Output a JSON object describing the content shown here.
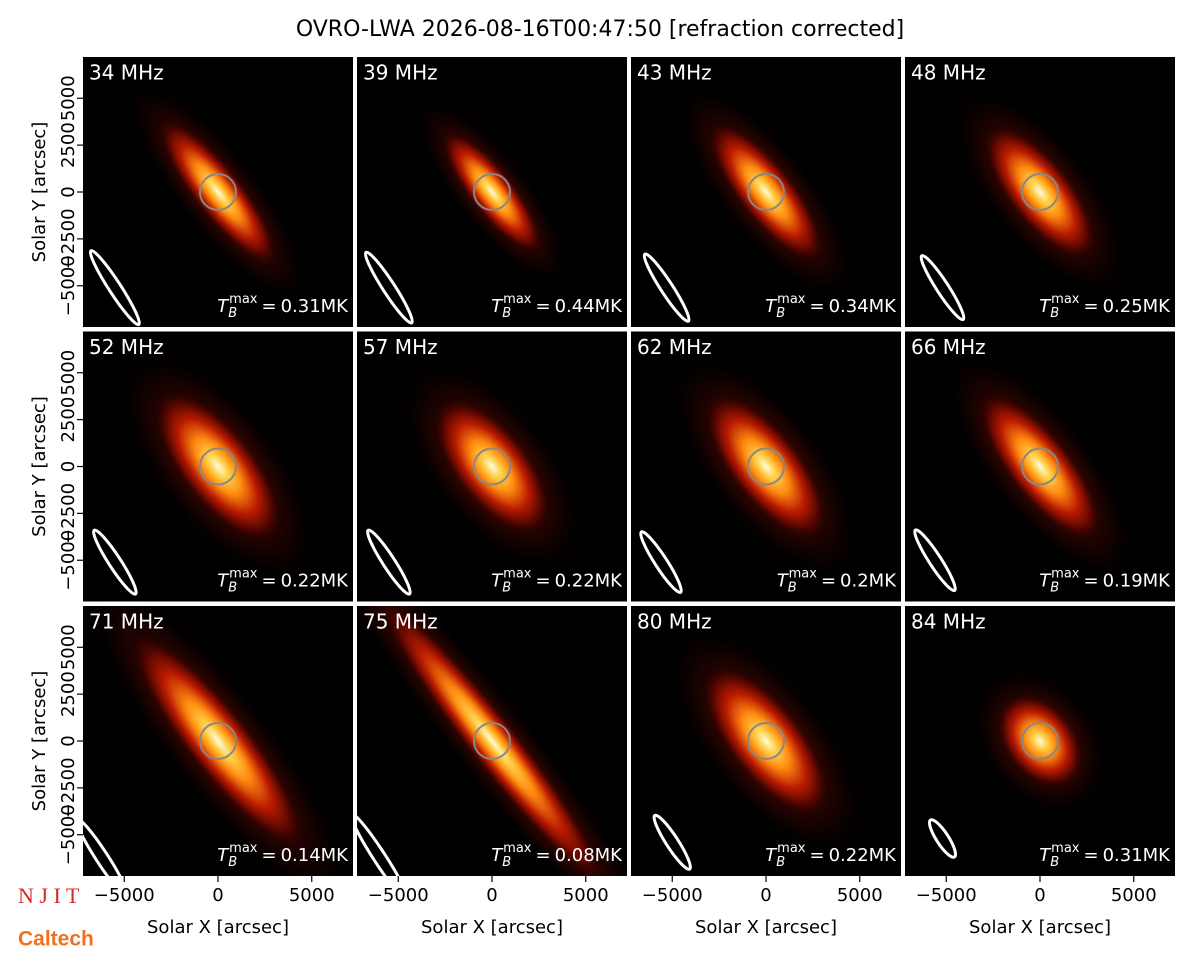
{
  "chart_data": {
    "type": "image",
    "title": "OVRO-LWA 2026-08-16T00:47:50 [refraction corrected]",
    "xlabel": "Solar X [arcsec]",
    "ylabel": "Solar Y [arcsec]",
    "xlim": [
      -7200,
      7200
    ],
    "ylim": [
      -7200,
      7200
    ],
    "xticks": [
      {
        "value": -5000,
        "label": "−5000"
      },
      0,
      5000
    ],
    "yticks": [
      {
        "value": -5000,
        "label": "−5000"
      },
      {
        "value": -2500,
        "label": "−2500"
      },
      0,
      2500,
      5000
    ],
    "tb_symbol": "T",
    "tb_sub": "B",
    "tb_sup": "max",
    "tb_eq": "=",
    "panels": [
      {
        "freq": "34 MHz",
        "tmax": "0.31MK"
      },
      {
        "freq": "39 MHz",
        "tmax": "0.44MK"
      },
      {
        "freq": "43 MHz",
        "tmax": "0.34MK"
      },
      {
        "freq": "48 MHz",
        "tmax": "0.25MK"
      },
      {
        "freq": "52 MHz",
        "tmax": "0.22MK"
      },
      {
        "freq": "57 MHz",
        "tmax": "0.22MK"
      },
      {
        "freq": "62 MHz",
        "tmax": "0.2MK"
      },
      {
        "freq": "66 MHz",
        "tmax": "0.19MK"
      },
      {
        "freq": "71 MHz",
        "tmax": "0.14MK"
      },
      {
        "freq": "75 MHz",
        "tmax": "0.08MK"
      },
      {
        "freq": "80 MHz",
        "tmax": "0.22MK"
      },
      {
        "freq": "84 MHz",
        "tmax": "0.31MK"
      }
    ],
    "logos": [
      "N J I T",
      "Caltech"
    ]
  }
}
